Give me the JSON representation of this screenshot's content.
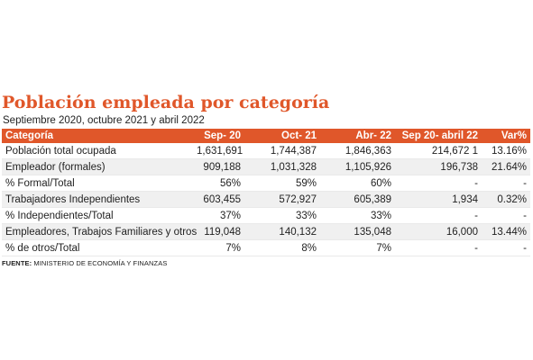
{
  "title": "Población empleada por categoría",
  "subtitle": "Septiembre 2020, octubre 2021 y abril 2022",
  "table": {
    "headers": [
      "Categoría",
      "Sep- 20",
      "Oct- 21",
      "Abr- 22",
      "Sep 20- abril 22",
      "Var%"
    ],
    "rows": [
      [
        "Población total ocupada",
        "1,631,691",
        "1,744,387",
        "1,846,363",
        "214,672 1",
        "13.16%"
      ],
      [
        "Empleador (formales)",
        "909,188",
        "1,031,328",
        "1,105,926",
        "196,738",
        "21.64%"
      ],
      [
        "% Formal/Total",
        "56%",
        "59%",
        "60%",
        "-",
        "-"
      ],
      [
        "Trabajadores Independientes",
        "603,455",
        "572,927",
        "605,389",
        "1,934",
        "0.32%"
      ],
      [
        "% Independientes/Total",
        "37%",
        "33%",
        "33%",
        "-",
        "-"
      ],
      [
        "Empleadores, Trabajos Familiares y otros",
        "119,048",
        "140,132",
        "135,048",
        "16,000",
        "13.44%"
      ],
      [
        "% de otros/Total",
        "7%",
        "8%",
        "7%",
        "-",
        "-"
      ]
    ]
  },
  "source": {
    "label": "FUENTE:",
    "text": " MINISTERIO DE ECONOMÍA Y FINANZAS"
  },
  "colors": {
    "accent": "#e0572a",
    "stripe": "#f0f0f0"
  }
}
